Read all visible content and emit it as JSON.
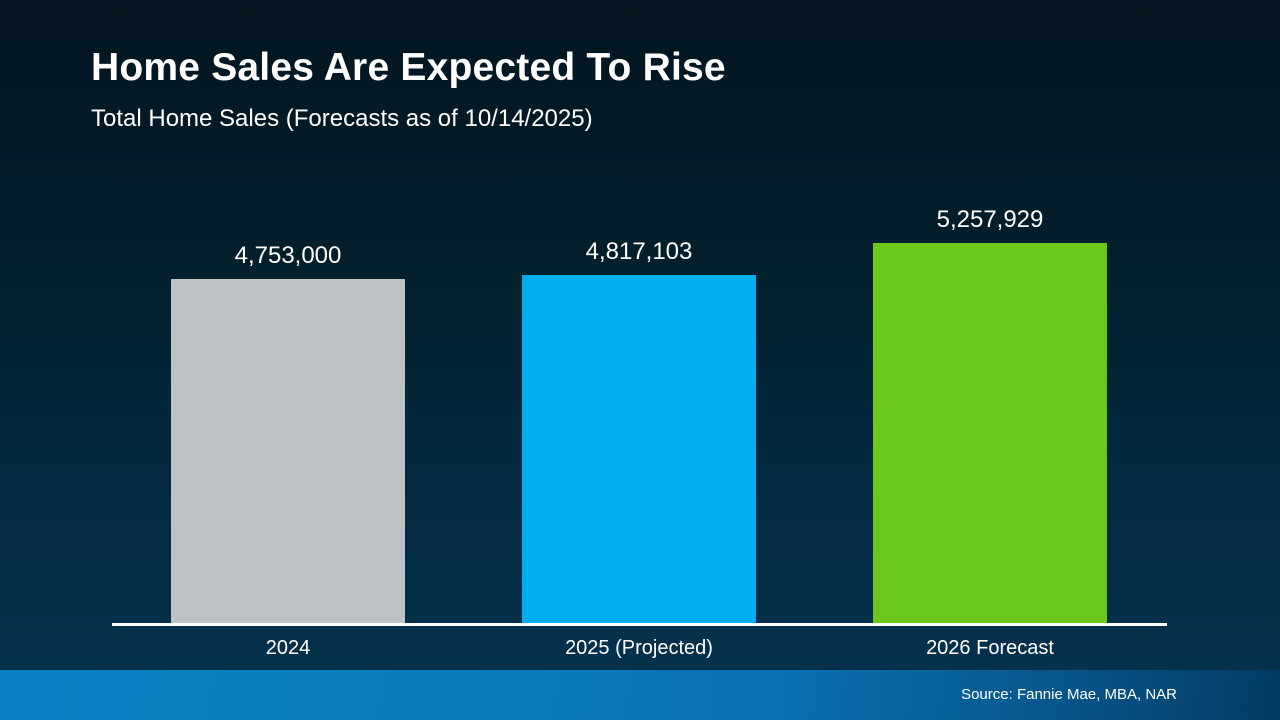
{
  "slide": {
    "title": "Home Sales Are Expected To Rise",
    "subtitle": "Total Home Sales (Forecasts as of 10/14/2025)",
    "source": "Source: Fannie Mae, MBA, NAR"
  },
  "colors": {
    "background_top": "#031520",
    "background_bottom": "#053350",
    "footer_gradient_left": "#0c82c6",
    "footer_gradient_right": "#053a60",
    "axis_line": "#ffffff",
    "text": "#ffffff"
  },
  "chart_data": {
    "type": "bar",
    "title": "Home Sales Are Expected To Rise",
    "subtitle": "Total Home Sales (Forecasts as of 10/14/2025)",
    "categories": [
      "2024",
      "2025 (Projected)",
      "2026 Forecast"
    ],
    "values": [
      4753000,
      4817103,
      5257929
    ],
    "value_labels": [
      "4,753,000",
      "4,817,103",
      "5,257,929"
    ],
    "bar_colors": [
      "#bec2c4",
      "#00aeef",
      "#6cc71b"
    ],
    "xlabel": "",
    "ylabel": "",
    "ylim": [
      0,
      6400000
    ],
    "grid": false,
    "legend": false,
    "annotation": "Source: Fannie Mae, MBA, NAR"
  }
}
